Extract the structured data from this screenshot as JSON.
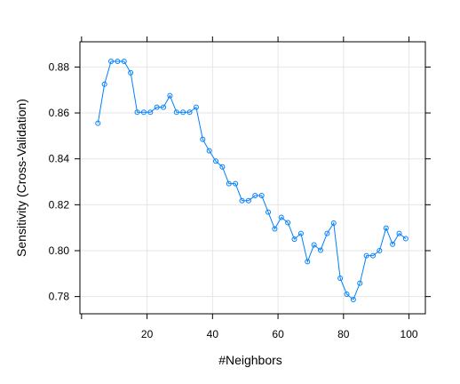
{
  "chart_data": {
    "type": "line",
    "title": "",
    "xlabel": "#Neighbors",
    "ylabel": "Sensitivity (Cross-Validation)",
    "xlim": [
      -0.5,
      105
    ],
    "ylim": [
      0.7725,
      0.891
    ],
    "x_ticks": [
      20,
      40,
      60,
      80,
      100
    ],
    "y_ticks": [
      0.78,
      0.8,
      0.82,
      0.84,
      0.86,
      0.88
    ],
    "x_tick_labels": [
      "20",
      "40",
      "60",
      "80",
      "100"
    ],
    "y_tick_labels": [
      "0.78",
      "0.80",
      "0.82",
      "0.84",
      "0.86",
      "0.88"
    ],
    "grid": true,
    "color": "#0080ff",
    "series": [
      {
        "x": [
          5,
          7,
          9,
          11,
          13,
          15,
          17,
          19,
          21,
          23,
          25,
          27,
          29,
          31,
          33,
          35,
          37,
          39,
          41,
          43,
          45,
          47,
          49,
          51,
          53,
          55,
          57,
          59,
          61,
          63,
          65,
          67,
          69,
          71,
          73,
          75,
          77,
          79,
          81,
          83,
          85,
          87,
          89,
          91,
          93,
          95,
          97,
          99
        ],
        "values": [
          0.8555,
          0.8725,
          0.8825,
          0.8825,
          0.8825,
          0.8775,
          0.8603,
          0.8603,
          0.8603,
          0.8625,
          0.8625,
          0.8675,
          0.8603,
          0.8603,
          0.8603,
          0.8625,
          0.8485,
          0.8435,
          0.839,
          0.8365,
          0.8292,
          0.8292,
          0.8218,
          0.8218,
          0.824,
          0.824,
          0.8168,
          0.8095,
          0.8145,
          0.8122,
          0.805,
          0.8075,
          0.7952,
          0.8025,
          0.8002,
          0.8075,
          0.812,
          0.788,
          0.781,
          0.7787,
          0.7858,
          0.7978,
          0.7978,
          0.8,
          0.8098,
          0.8028,
          0.8075,
          0.8052
        ]
      }
    ]
  }
}
